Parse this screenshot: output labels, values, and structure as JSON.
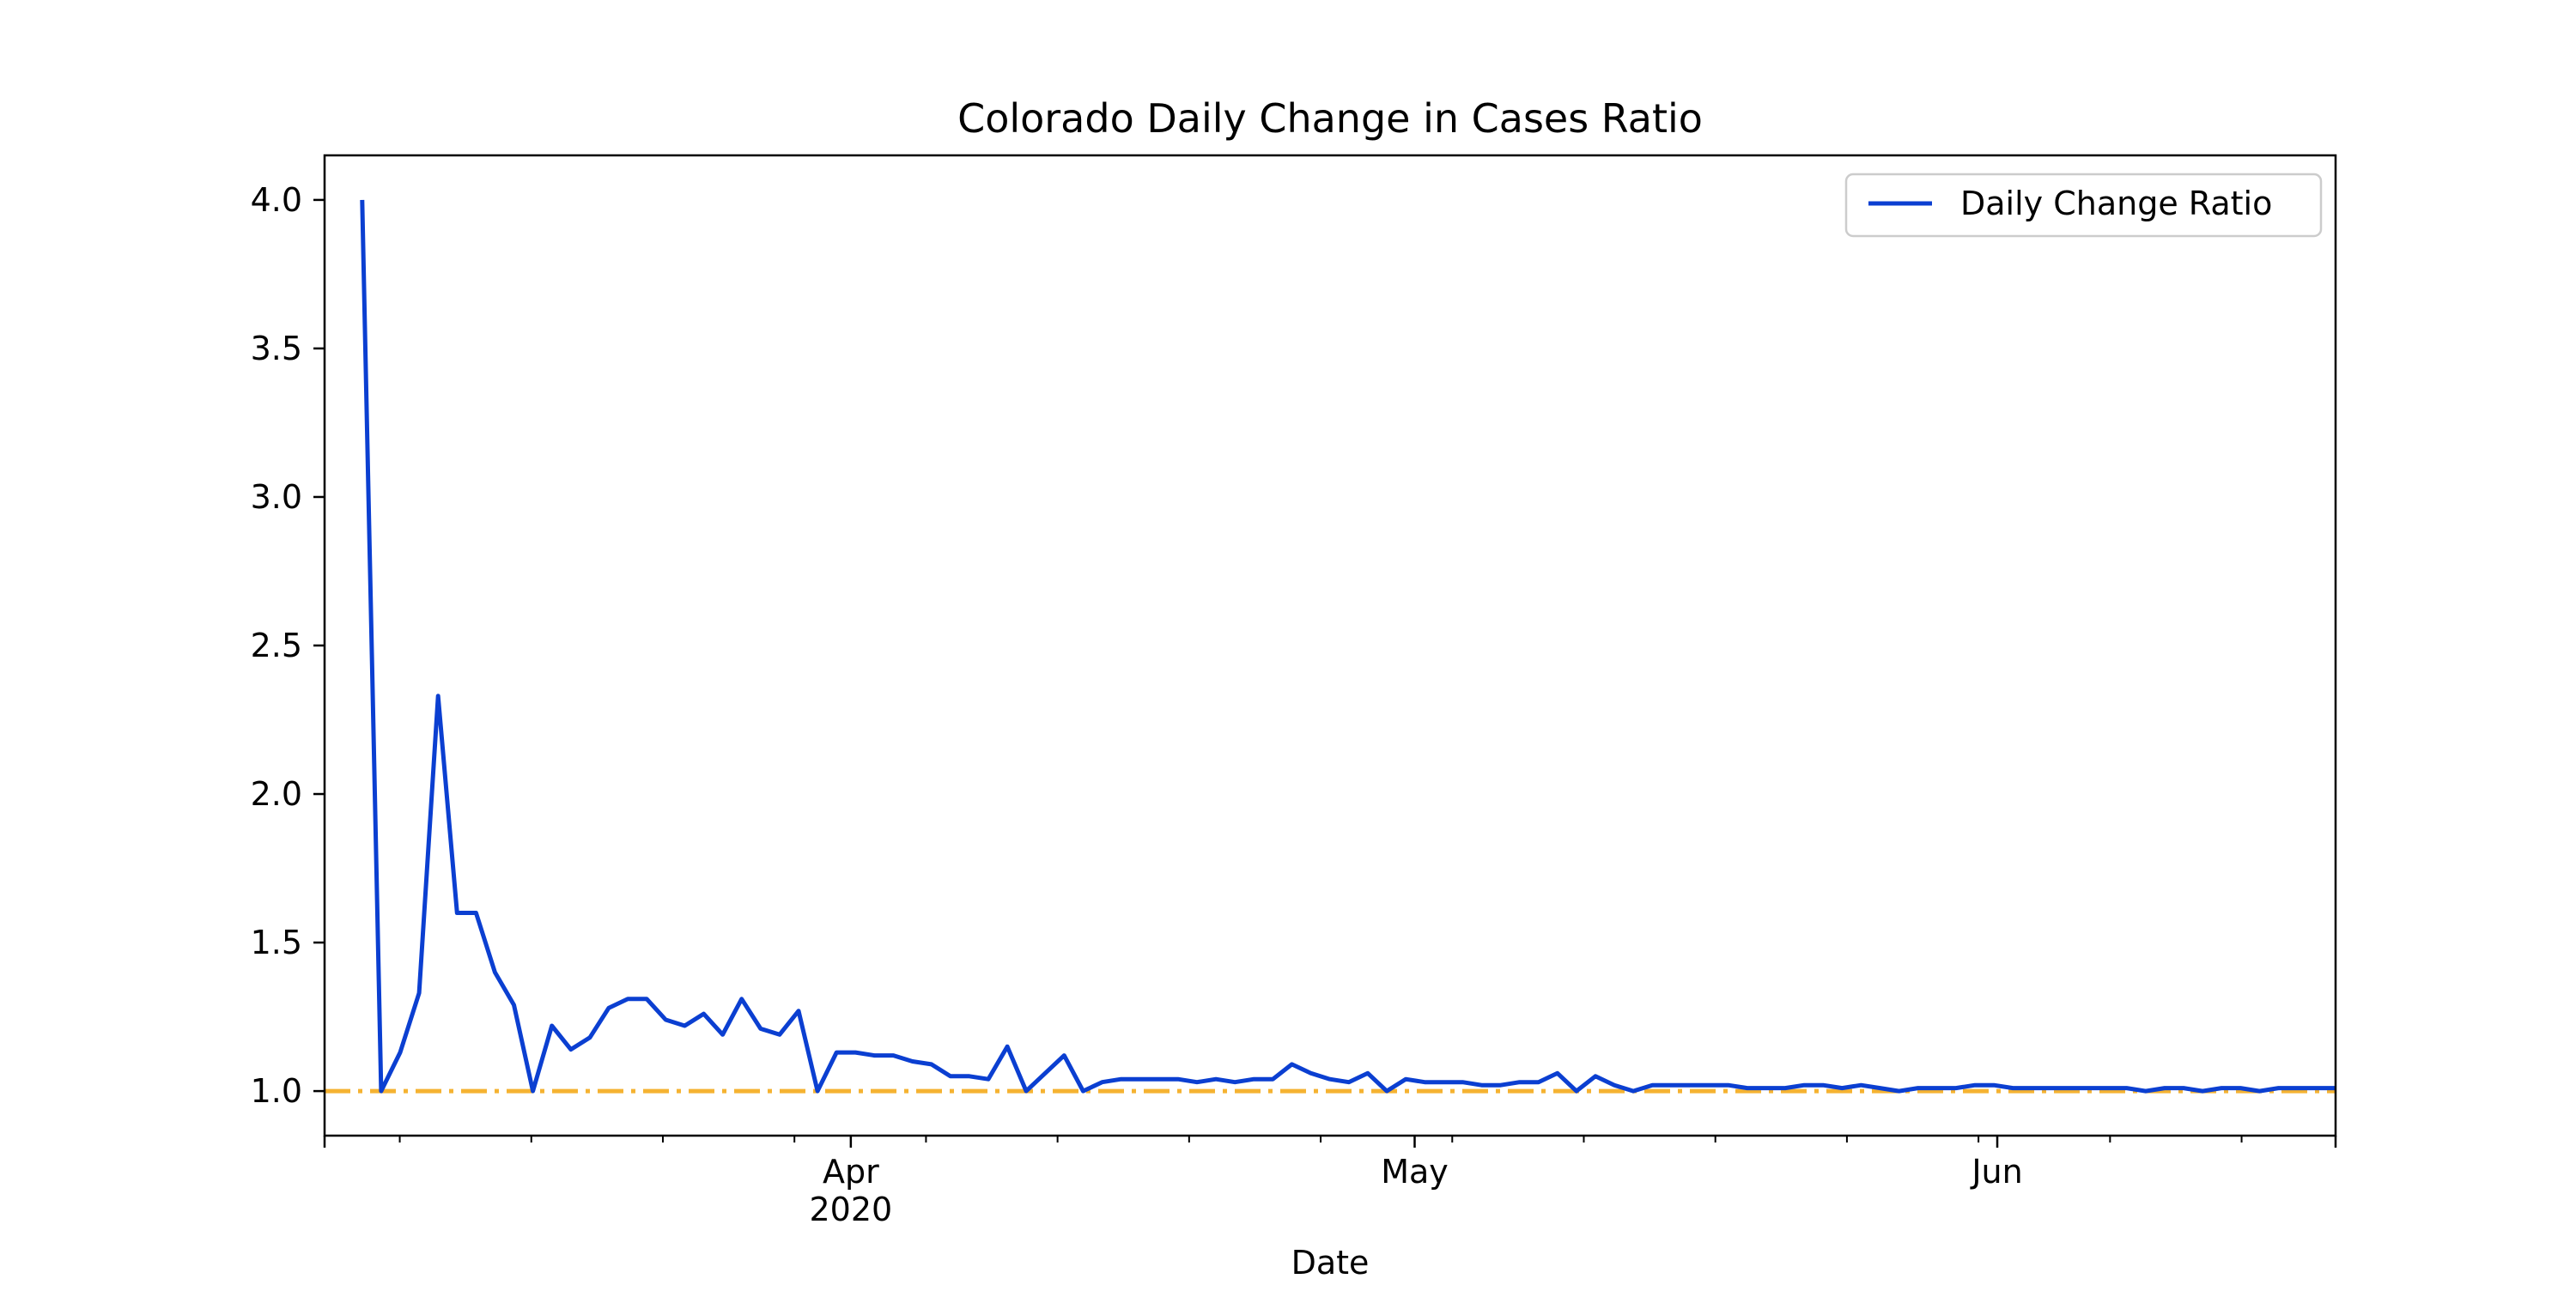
{
  "chart_data": {
    "type": "line",
    "title": "Colorado Daily Change in Cases Ratio",
    "xlabel": "Date",
    "ylabel": "",
    "x_start": "2020-03-06",
    "x_end": "2020-06-20",
    "xlim": [
      "2020-03-04",
      "2020-06-19"
    ],
    "ylim": [
      0.85,
      4.15
    ],
    "y_ticks": [
      1.0,
      1.5,
      2.0,
      2.5,
      3.0,
      3.5,
      4.0
    ],
    "y_tick_labels": [
      "1.0",
      "1.5",
      "2.0",
      "2.5",
      "3.0",
      "3.5",
      "4.0"
    ],
    "x_major_ticks": [
      {
        "date": "2020-04-01",
        "label": "Apr",
        "sublabel": "2020"
      },
      {
        "date": "2020-05-01",
        "label": "May",
        "sublabel": ""
      },
      {
        "date": "2020-06-01",
        "label": "Jun",
        "sublabel": ""
      }
    ],
    "x_minor_ticks": [
      "2020-03-08",
      "2020-03-15",
      "2020-03-22",
      "2020-03-29",
      "2020-04-05",
      "2020-04-12",
      "2020-04-19",
      "2020-04-26",
      "2020-05-03",
      "2020-05-10",
      "2020-05-17",
      "2020-05-24",
      "2020-05-31",
      "2020-06-07",
      "2020-06-14"
    ],
    "grid": false,
    "legend": {
      "position": "top-right"
    },
    "series": [
      {
        "name": "Daily Change Ratio",
        "color": "#0b3fd1",
        "values": [
          4.0,
          1.0,
          1.13,
          1.33,
          2.33,
          1.6,
          1.6,
          1.4,
          1.29,
          1.0,
          1.22,
          1.14,
          1.18,
          1.28,
          1.31,
          1.31,
          1.24,
          1.22,
          1.26,
          1.19,
          1.31,
          1.21,
          1.19,
          1.27,
          1.0,
          1.13,
          1.13,
          1.12,
          1.12,
          1.1,
          1.09,
          1.05,
          1.05,
          1.04,
          1.15,
          1.0,
          1.06,
          1.12,
          1.0,
          1.03,
          1.04,
          1.04,
          1.04,
          1.04,
          1.03,
          1.04,
          1.03,
          1.04,
          1.04,
          1.09,
          1.06,
          1.04,
          1.03,
          1.06,
          1.0,
          1.04,
          1.03,
          1.03,
          1.03,
          1.02,
          1.02,
          1.03,
          1.03,
          1.06,
          1.0,
          1.05,
          1.02,
          1.0,
          1.02,
          1.02,
          1.02,
          1.02,
          1.02,
          1.01,
          1.01,
          1.01,
          1.02,
          1.02,
          1.01,
          1.02,
          1.01,
          1.0,
          1.01,
          1.01,
          1.01,
          1.02,
          1.02,
          1.01,
          1.01,
          1.01,
          1.01,
          1.01,
          1.01,
          1.01,
          1.0,
          1.01,
          1.01,
          1.0,
          1.01,
          1.01,
          1.0,
          1.01,
          1.01,
          1.01,
          1.01,
          1.01
        ]
      }
    ],
    "reference_line": {
      "y": 1.0,
      "color": "#f5b332",
      "style": "dash-dot"
    }
  }
}
